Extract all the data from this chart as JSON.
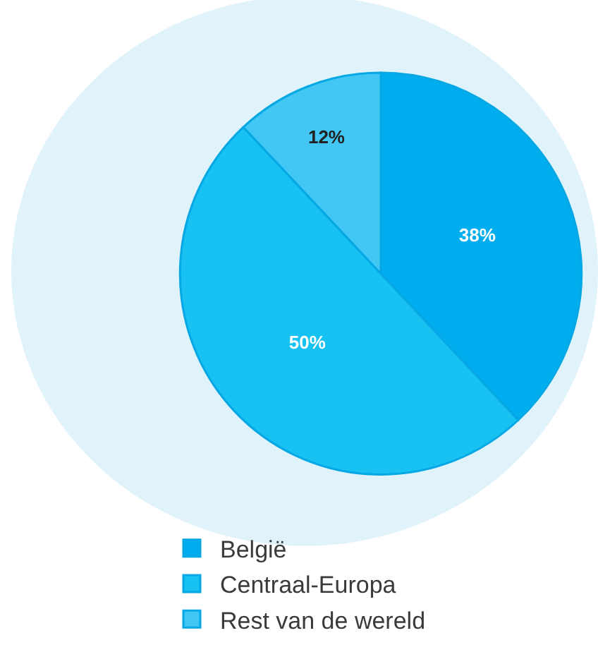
{
  "chart_data": {
    "type": "pie",
    "categories": [
      "België",
      "Centraal-Europa",
      "Rest van de wereld"
    ],
    "values": [
      38,
      50,
      12
    ],
    "colors": [
      "#00aeef",
      "#17c1f2",
      "#42c7f4"
    ],
    "value_labels": [
      "38%",
      "50%",
      "12%"
    ],
    "legend": "bottom left"
  }
}
